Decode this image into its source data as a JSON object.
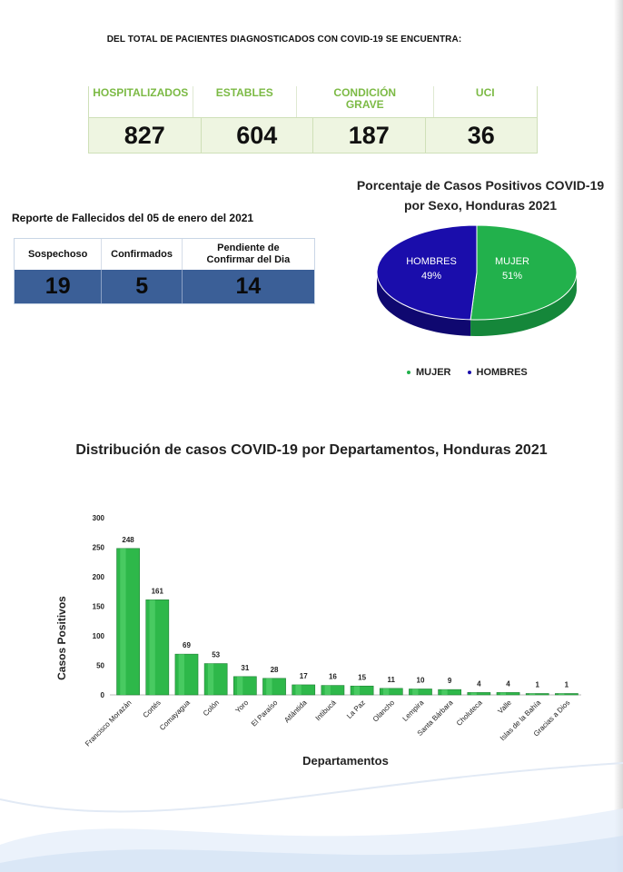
{
  "headline": "DEL TOTAL DE PACIENTES DIAGNOSTICADOS CON COVID-19 SE ENCUENTRA:",
  "status": {
    "headers": [
      "HOSPITALIZADOS",
      "ESTABLES",
      "CONDICIÓN GRAVE",
      "UCI"
    ],
    "values": [
      "827",
      "604",
      "187",
      "36"
    ]
  },
  "deaths": {
    "title": "Reporte de Fallecidos del 05 de enero del 2021",
    "headers": [
      "Sospechoso",
      "Confirmados",
      "Pendiente de Confirmar del Dia"
    ],
    "values": [
      "19",
      "5",
      "14"
    ]
  },
  "colors": {
    "green": "#7cba45",
    "blue_fill": "#3b5f97",
    "pie_green": "#22b14c",
    "pie_blue": "#1a0dab",
    "bar_green": "#2eb84a"
  },
  "chart_data": [
    {
      "type": "pie",
      "title": "Porcentaje de Casos Positivos COVID-19 por Sexo, Honduras 2021",
      "slices": [
        {
          "label": "MUJER",
          "value": 51,
          "display": "51%",
          "color": "#22b14c"
        },
        {
          "label": "HOMBRES",
          "value": 49,
          "display": "49%",
          "color": "#1a0dab"
        }
      ],
      "legend": [
        "MUJER",
        "HOMBRES"
      ],
      "legend_position": "bottom"
    },
    {
      "type": "bar",
      "title": "Distribución de casos COVID-19 por Departamentos, Honduras 2021",
      "xlabel": "Departamentos",
      "ylabel": "Casos Positivos",
      "ylim": [
        0,
        300
      ],
      "yticks": [
        0,
        50,
        100,
        150,
        200,
        250,
        300
      ],
      "categories": [
        "Francisco Morazán",
        "Cortés",
        "Comayagua",
        "Colón",
        "Yoro",
        "El Paraíso",
        "Atlántida",
        "Intibucá",
        "La Paz",
        "Olancho",
        "Lempira",
        "Santa Bárbara",
        "Choluteca",
        "Valle",
        "Islas de la Bahía",
        "Gracias a Dios"
      ],
      "values": [
        248,
        161,
        69,
        53,
        31,
        28,
        17,
        16,
        15,
        11,
        10,
        9,
        4,
        4,
        1,
        1
      ]
    }
  ]
}
